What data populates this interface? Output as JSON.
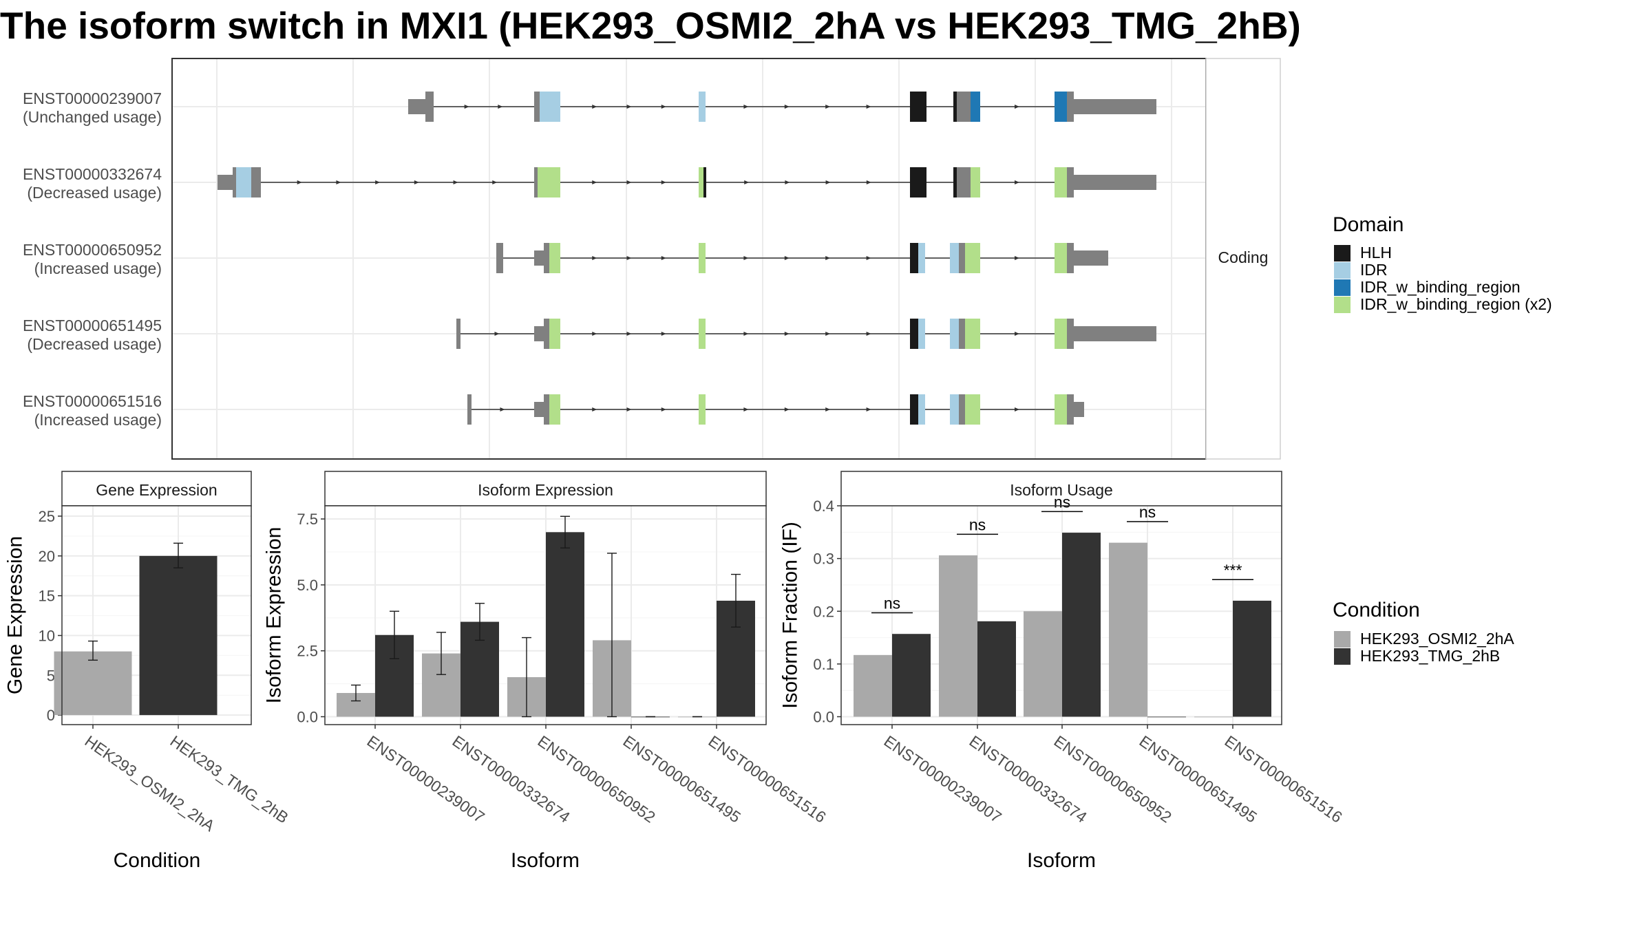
{
  "title": "The isoform switch in MXI1 (HEK293_OSMI2_2hA vs HEK293_TMG_2hB)",
  "colors": {
    "HLH": "#1a1a1a",
    "IDR": "#a6cee3",
    "IDR_w_binding_region": "#1f78b4",
    "IDR_w_binding_region (x2)": "#b2df8a",
    "utr": "#808080",
    "condA": "#a9a9a9",
    "condB": "#333333"
  },
  "transcript_panel": {
    "strip_label": "Coding",
    "transcripts": [
      {
        "id": "ENST00000239007",
        "usage": "(Unchanged usage)"
      },
      {
        "id": "ENST00000332674",
        "usage": "(Decreased usage)"
      },
      {
        "id": "ENST00000650952",
        "usage": "(Increased usage)"
      },
      {
        "id": "ENST00000651495",
        "usage": "(Decreased usage)"
      },
      {
        "id": "ENST00000651516",
        "usage": "(Increased usage)"
      }
    ]
  },
  "legend_domain": {
    "title": "Domain",
    "items": [
      "HLH",
      "IDR",
      "IDR_w_binding_region",
      "IDR_w_binding_region (x2)"
    ]
  },
  "legend_condition": {
    "title": "Condition",
    "items": [
      "HEK293_OSMI2_2hA",
      "HEK293_TMG_2hB"
    ]
  },
  "chart_data": [
    {
      "type": "bar",
      "title": "Gene Expression",
      "xlabel": "Condition",
      "ylabel": "Gene Expression",
      "categories": [
        "HEK293_OSMI2_2hA",
        "HEK293_TMG_2hB"
      ],
      "values": [
        8.0,
        20.0
      ],
      "errors": [
        [
          6.9,
          9.3
        ],
        [
          18.5,
          21.6
        ]
      ],
      "ylim": [
        -1.2,
        26.3
      ],
      "yticks": [
        0,
        5,
        10,
        15,
        20,
        25
      ],
      "ytick_labels": [
        "0",
        "5",
        "10",
        "15",
        "20",
        "25"
      ],
      "grid": true
    },
    {
      "type": "bar",
      "title": "Isoform Expression",
      "xlabel": "Isoform",
      "ylabel": "Isoform Expression",
      "categories": [
        "ENST00000239007",
        "ENST00000332674",
        "ENST00000650952",
        "ENST00000651495",
        "ENST00000651516"
      ],
      "series": [
        {
          "name": "HEK293_OSMI2_2hA",
          "values": [
            0.9,
            2.4,
            1.5,
            2.9,
            0.0
          ],
          "errors": [
            [
              0.6,
              1.2
            ],
            [
              1.6,
              3.2
            ],
            [
              0.0,
              3.0
            ],
            [
              0.0,
              6.2
            ],
            [
              0.0,
              0.0
            ]
          ]
        },
        {
          "name": "HEK293_TMG_2hB",
          "values": [
            3.1,
            3.6,
            7.0,
            0.0,
            4.4
          ],
          "errors": [
            [
              2.2,
              4.0
            ],
            [
              2.9,
              4.3
            ],
            [
              6.4,
              7.6
            ],
            [
              0.0,
              0.0
            ],
            [
              3.4,
              5.4
            ]
          ]
        }
      ],
      "ylim": [
        -0.3,
        8.0
      ],
      "yticks": [
        0,
        2.5,
        5,
        7.5
      ],
      "ytick_labels": [
        "0.0",
        "2.5",
        "5.0",
        "7.5"
      ],
      "grid": true
    },
    {
      "type": "bar",
      "title": "Isoform Usage",
      "xlabel": "Isoform",
      "ylabel": "Isoform Fraction (IF)",
      "categories": [
        "ENST00000239007",
        "ENST00000332674",
        "ENST00000650952",
        "ENST00000651495",
        "ENST00000651516"
      ],
      "series": [
        {
          "name": "HEK293_OSMI2_2hA",
          "values": [
            0.117,
            0.306,
            0.2,
            0.33,
            0.0
          ]
        },
        {
          "name": "HEK293_TMG_2hB",
          "values": [
            0.157,
            0.181,
            0.349,
            0.0,
            0.22
          ]
        }
      ],
      "significance": [
        "ns",
        "ns",
        "ns",
        "ns",
        "***"
      ],
      "ylim": [
        -0.015,
        0.4
      ],
      "yticks": [
        0,
        0.1,
        0.2,
        0.3,
        0.4
      ],
      "ytick_labels": [
        "0.0",
        "0.1",
        "0.2",
        "0.3",
        "0.4"
      ],
      "grid": true
    }
  ]
}
